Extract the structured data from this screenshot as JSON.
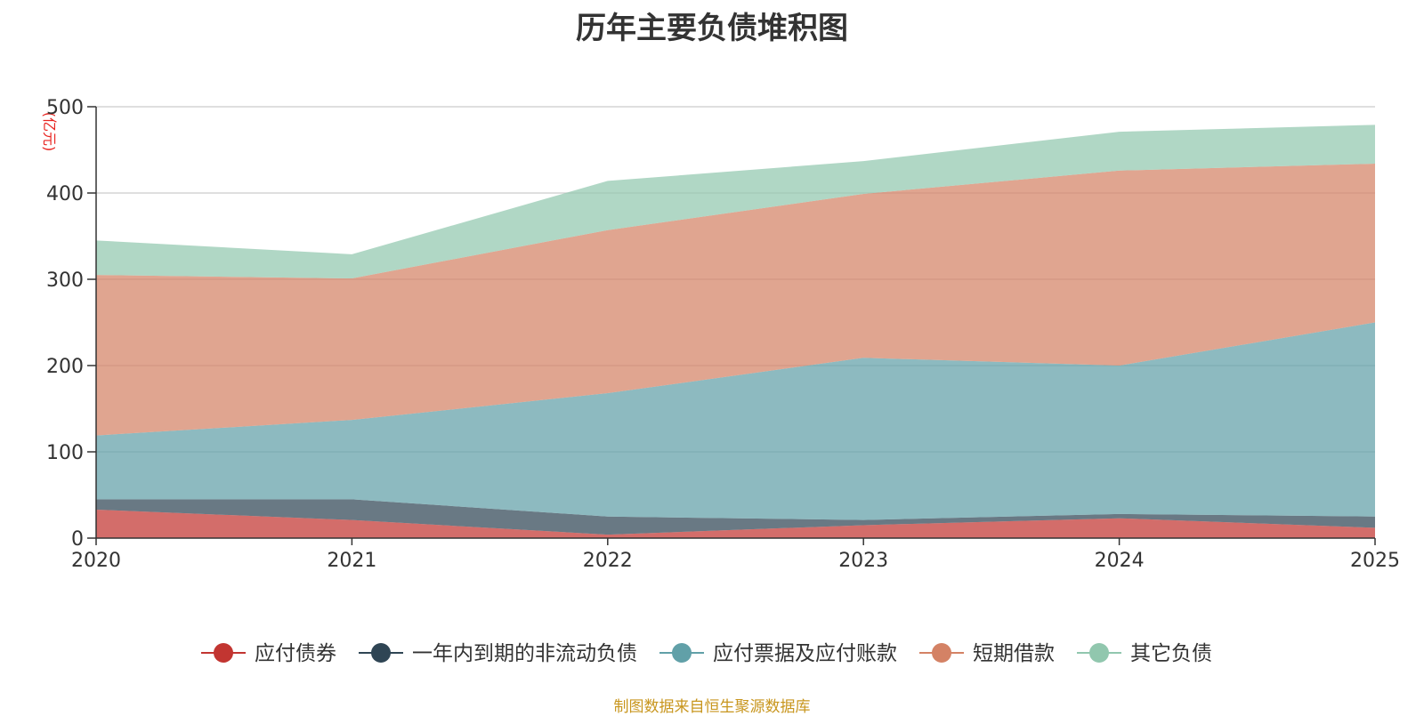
{
  "title": "历年主要负债堆积图",
  "source": "制图数据来自恒生聚源数据库",
  "colors": {
    "应付债券": "#c23531",
    "一年内到期的非流动负债": "#2f4554",
    "应付票据及应付账款": "#61a0a8",
    "短期借款": "#d48265",
    "其它负债": "#91c7ae"
  },
  "chart_data": {
    "type": "area",
    "stacked": true,
    "title": "历年主要负债堆积图",
    "ylabel": "(亿元)",
    "xlabel": "",
    "ylim": [
      0,
      500
    ],
    "yticks": [
      0,
      100,
      200,
      300,
      400,
      500
    ],
    "categories": [
      "2020",
      "2021",
      "2022",
      "2023",
      "2024",
      "2025"
    ],
    "series": [
      {
        "name": "应付债券",
        "values": [
          33,
          21,
          4,
          15,
          23,
          12
        ]
      },
      {
        "name": "一年内到期的非流动负债",
        "values": [
          12,
          24,
          21,
          6,
          5,
          13
        ]
      },
      {
        "name": "应付票据及应付账款",
        "values": [
          74,
          92,
          143,
          188,
          172,
          225
        ]
      },
      {
        "name": "短期借款",
        "values": [
          186,
          164,
          189,
          190,
          226,
          184
        ]
      },
      {
        "name": "其它负债",
        "values": [
          40,
          28,
          57,
          38,
          45,
          45
        ]
      }
    ],
    "legend": [
      "应付债券",
      "一年内到期的非流动负债",
      "应付票据及应付账款",
      "短期借款",
      "其它负债"
    ],
    "legend_position": "bottom-center",
    "grid": true
  }
}
